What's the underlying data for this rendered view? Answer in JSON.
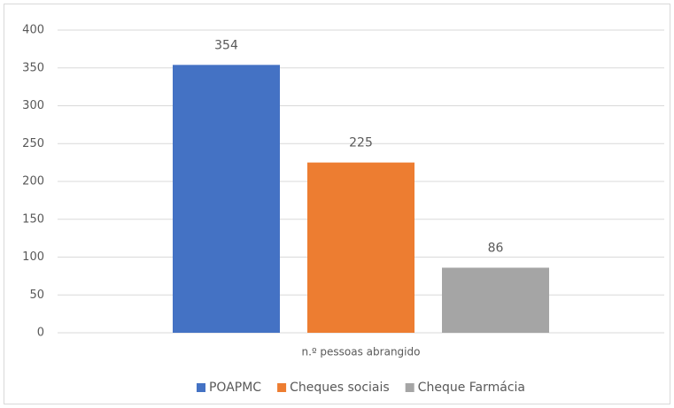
{
  "chart_data": {
    "type": "bar",
    "categories": [
      "n.º pessoas abrangido"
    ],
    "series": [
      {
        "name": "POAPMC",
        "color": "#4472c4",
        "values": [
          354
        ]
      },
      {
        "name": "Cheques sociais",
        "color": "#ed7d31",
        "values": [
          225
        ]
      },
      {
        "name": "Cheque Farmácia",
        "color": "#a5a5a5",
        "values": [
          86
        ]
      }
    ],
    "ylim": [
      0,
      400
    ],
    "yticks": [
      0,
      50,
      100,
      150,
      200,
      250,
      300,
      350,
      400
    ],
    "grid": true,
    "legend": "bottom"
  }
}
